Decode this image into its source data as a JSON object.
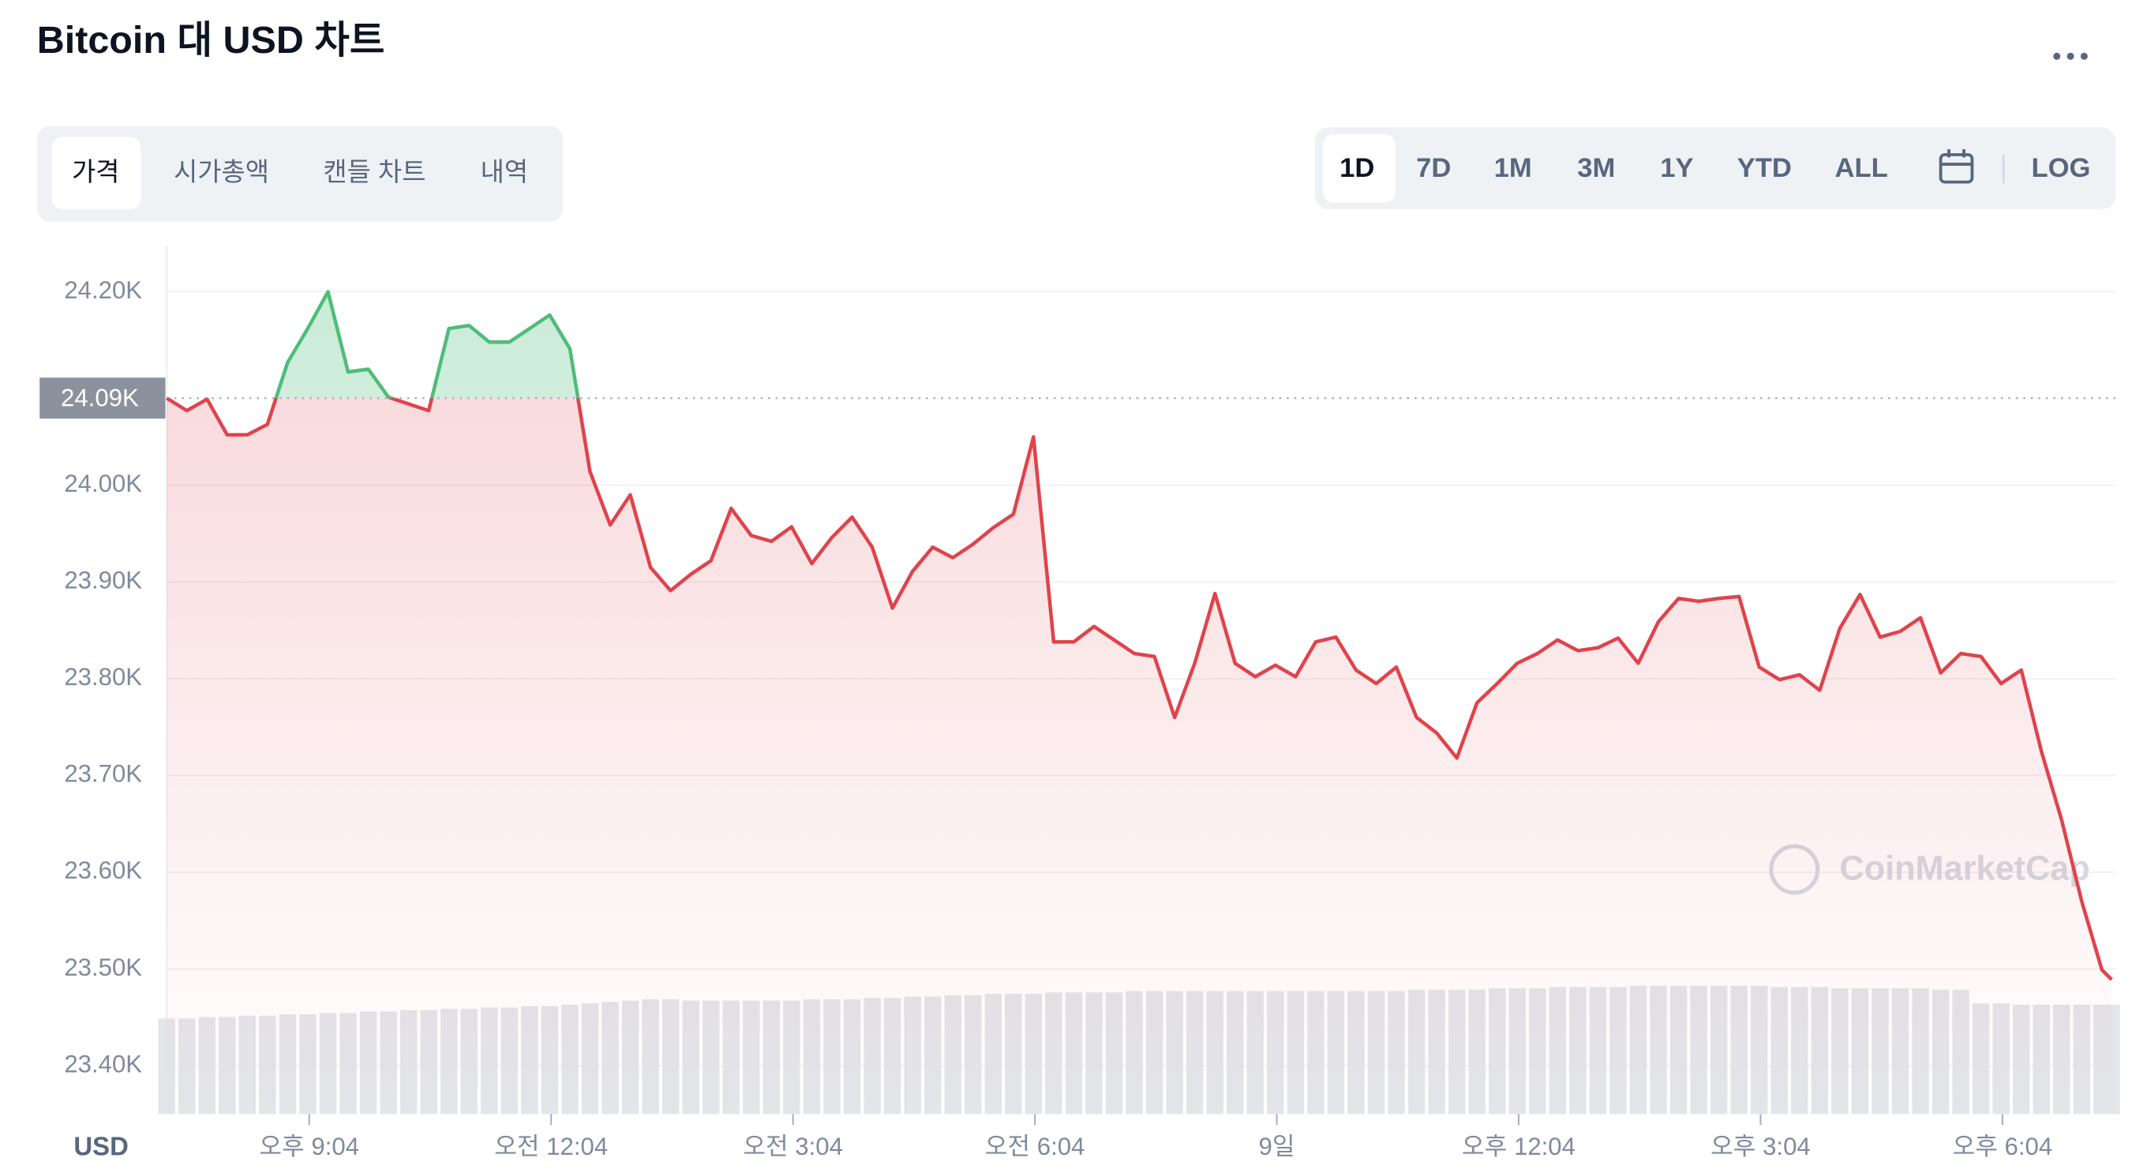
{
  "header": {
    "title": "Bitcoin 대 USD 차트",
    "tabs": [
      "가격",
      "시가총액",
      "캔들 차트",
      "내역"
    ],
    "ranges": [
      "1D",
      "7D",
      "1M",
      "3M",
      "1Y",
      "YTD",
      "ALL"
    ],
    "log": "LOG"
  },
  "chart_data": {
    "type": "line",
    "y_label": "USD",
    "watermark": "CoinMarketCap",
    "color_up": "#4ebd7a",
    "color_down": "#e0434c",
    "x": [
      19.3,
      19.55,
      19.8,
      20.05,
      20.3,
      20.55,
      20.8,
      21.05,
      21.3,
      21.55,
      21.8,
      22.05,
      22.3,
      22.55,
      22.8,
      23.05,
      23.3,
      23.55,
      23.8,
      24.05,
      24.3,
      24.55,
      24.8,
      25.05,
      25.3,
      25.55,
      25.8,
      26.05,
      26.3,
      26.55,
      26.8,
      27.05,
      27.3,
      27.55,
      27.8,
      28.05,
      28.3,
      28.55,
      28.8,
      29.05,
      29.3,
      29.55,
      29.8,
      30.05,
      30.3,
      30.55,
      30.8,
      31.05,
      31.3,
      31.55,
      31.8,
      32.05,
      32.3,
      32.55,
      32.8,
      33.05,
      33.3,
      33.55,
      33.8,
      34.05,
      34.3,
      34.55,
      34.8,
      35.05,
      35.3,
      35.55,
      35.8,
      36.05,
      36.3,
      36.55,
      36.8,
      37.05,
      37.3,
      37.55,
      37.8,
      38.05,
      38.3,
      38.55,
      38.8,
      39.05,
      39.3,
      39.55,
      39.8,
      40.05,
      40.3,
      40.55,
      40.8,
      41.05,
      41.3,
      41.55,
      41.8,
      42.05,
      42.3,
      42.55,
      42.8,
      43.05,
      43.3,
      43.42
    ],
    "values": [
      24.09,
      24.077,
      24.089,
      24.052,
      24.052,
      24.063,
      24.127,
      24.162,
      24.2,
      24.117,
      24.12,
      24.091,
      24.084,
      24.077,
      24.162,
      24.165,
      24.148,
      24.148,
      24.162,
      24.176,
      24.141,
      24.014,
      23.959,
      23.99,
      23.915,
      23.891,
      23.908,
      23.922,
      23.976,
      23.948,
      23.942,
      23.957,
      23.919,
      23.946,
      23.967,
      23.936,
      23.873,
      23.911,
      23.936,
      23.925,
      23.939,
      23.956,
      23.97,
      24.05,
      23.838,
      23.838,
      23.854,
      23.84,
      23.826,
      23.823,
      23.76,
      23.816,
      23.888,
      23.816,
      23.802,
      23.814,
      23.802,
      23.838,
      23.843,
      23.809,
      23.795,
      23.812,
      23.76,
      23.744,
      23.718,
      23.775,
      23.795,
      23.816,
      23.826,
      23.84,
      23.829,
      23.832,
      23.842,
      23.816,
      23.859,
      23.883,
      23.88,
      23.883,
      23.885,
      23.812,
      23.799,
      23.804,
      23.788,
      23.852,
      23.887,
      23.843,
      23.849,
      23.863,
      23.806,
      23.826,
      23.823,
      23.795,
      23.809,
      23.725,
      23.654,
      23.57,
      23.499,
      23.489
    ],
    "reference": {
      "value": 24.09,
      "label": "24.09K"
    },
    "volume": {
      "color": "#e3e5e9",
      "axis": "y2",
      "values": [
        0.7,
        0.7,
        0.71,
        0.71,
        0.72,
        0.72,
        0.73,
        0.73,
        0.74,
        0.74,
        0.75,
        0.75,
        0.76,
        0.76,
        0.77,
        0.77,
        0.78,
        0.78,
        0.79,
        0.79,
        0.8,
        0.81,
        0.82,
        0.83,
        0.84,
        0.84,
        0.83,
        0.83,
        0.83,
        0.83,
        0.83,
        0.83,
        0.84,
        0.84,
        0.84,
        0.85,
        0.85,
        0.86,
        0.86,
        0.87,
        0.87,
        0.88,
        0.88,
        0.88,
        0.89,
        0.89,
        0.89,
        0.89,
        0.9,
        0.9,
        0.9,
        0.9,
        0.9,
        0.9,
        0.9,
        0.9,
        0.9,
        0.9,
        0.9,
        0.9,
        0.9,
        0.9,
        0.91,
        0.91,
        0.91,
        0.91,
        0.92,
        0.92,
        0.92,
        0.93,
        0.93,
        0.93,
        0.93,
        0.94,
        0.94,
        0.94,
        0.94,
        0.94,
        0.94,
        0.94,
        0.93,
        0.93,
        0.93,
        0.92,
        0.92,
        0.92,
        0.92,
        0.92,
        0.91,
        0.91,
        0.81,
        0.81,
        0.8,
        0.8,
        0.8,
        0.8,
        0.8,
        0.8
      ]
    },
    "xlim": [
      19.3,
      43.47
    ],
    "xticks": [
      {
        "value": 21.067,
        "label": "오후 9:04"
      },
      {
        "value": 24.067,
        "label": "오전 12:04"
      },
      {
        "value": 27.067,
        "label": "오전 3:04"
      },
      {
        "value": 30.067,
        "label": "오전 6:04"
      },
      {
        "value": 33.067,
        "label": "9일"
      },
      {
        "value": 36.067,
        "label": "오후 12:04"
      },
      {
        "value": 39.067,
        "label": "오후 3:04"
      },
      {
        "value": 42.067,
        "label": "오후 6:04"
      }
    ],
    "ylim": [
      23.35,
      24.247
    ],
    "yticks": [
      {
        "value": 23.4,
        "label": "23.40K"
      },
      {
        "value": 23.5,
        "label": "23.50K"
      },
      {
        "value": 23.6,
        "label": "23.60K"
      },
      {
        "value": 23.7,
        "label": "23.70K"
      },
      {
        "value": 23.8,
        "label": "23.80K"
      },
      {
        "value": 23.9,
        "label": "23.90K"
      },
      {
        "value": 24.0,
        "label": "24.00K"
      },
      {
        "value": 24.2,
        "label": "24.20K"
      }
    ],
    "y2lim": [
      0,
      6.35
    ],
    "grid": true
  }
}
